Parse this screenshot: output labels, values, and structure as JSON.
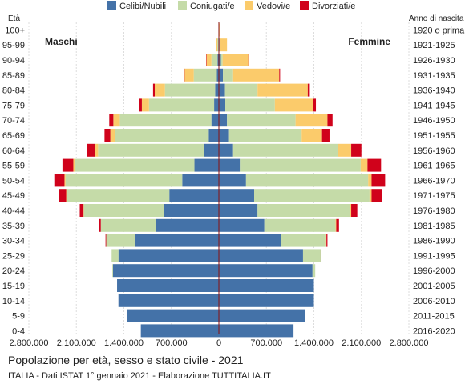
{
  "chart_data": {
    "type": "bar",
    "orientation": "horizontal-population-pyramid",
    "title": "Popolazione per età, sesso e stato civile - 2021",
    "subtitle": "ITALIA - Dati ISTAT 1° gennaio 2021 - Elaborazione TUTTITALIA.IT",
    "left_axis_title": "Età",
    "right_axis_title": "Anno di nascita",
    "left_side_label": "Maschi",
    "right_side_label": "Femmine",
    "legend_placement": "top-center",
    "grid": true,
    "xlim": [
      -2800000,
      2800000
    ],
    "x_ticks": [
      -2800000,
      -2100000,
      -1400000,
      -700000,
      0,
      700000,
      1400000,
      2100000,
      2800000
    ],
    "x_tick_labels": [
      "2.800.000",
      "2.100.000",
      "1.400.000",
      "700.000",
      "0",
      "700.000",
      "1.400.000",
      "2.100.000",
      "2.800.000"
    ],
    "age_groups": [
      "100+",
      "95-99",
      "90-94",
      "85-89",
      "80-84",
      "75-79",
      "70-74",
      "65-69",
      "60-64",
      "55-59",
      "50-54",
      "45-49",
      "40-44",
      "35-39",
      "30-34",
      "25-29",
      "20-24",
      "15-19",
      "10-14",
      "5-9",
      "0-4"
    ],
    "birth_years": [
      "1920 o prima",
      "1921-1925",
      "1926-1930",
      "1931-1935",
      "1936-1940",
      "1941-1945",
      "1946-1950",
      "1951-1955",
      "1956-1960",
      "1961-1965",
      "1966-1970",
      "1971-1975",
      "1976-1980",
      "1981-1985",
      "1986-1990",
      "1991-1995",
      "1996-2000",
      "2001-2005",
      "2006-2010",
      "2011-2015",
      "2016-2020"
    ],
    "series": [
      {
        "name": "Celibi/Nubili",
        "color": "#4472a8",
        "male": [
          3000,
          8000,
          20000,
          30000,
          55000,
          70000,
          110000,
          150000,
          220000,
          360000,
          540000,
          730000,
          810000,
          930000,
          1240000,
          1480000,
          1560000,
          1500000,
          1480000,
          1350000,
          1150000
        ],
        "female": [
          3000,
          10000,
          30000,
          60000,
          90000,
          95000,
          120000,
          150000,
          210000,
          310000,
          400000,
          520000,
          570000,
          670000,
          920000,
          1240000,
          1380000,
          1400000,
          1400000,
          1270000,
          1100000
        ]
      },
      {
        "name": "Coniugati/e",
        "color": "#c5dba8",
        "male": [
          1000,
          15000,
          90000,
          340000,
          740000,
          960000,
          1350000,
          1380000,
          1560000,
          1760000,
          1720000,
          1510000,
          1180000,
          810000,
          420000,
          100000,
          10000,
          0,
          0,
          0,
          0
        ],
        "female": [
          500,
          10000,
          25000,
          150000,
          480000,
          730000,
          1010000,
          1070000,
          1540000,
          1780000,
          1800000,
          1700000,
          1360000,
          1050000,
          660000,
          260000,
          40000,
          0,
          0,
          0,
          0
        ]
      },
      {
        "name": "Vedovi/e",
        "color": "#fbcb6b",
        "male": [
          2000,
          20000,
          75000,
          135000,
          150000,
          105000,
          95000,
          70000,
          50000,
          25000,
          15000,
          10000,
          5000,
          0,
          0,
          0,
          0,
          0,
          0,
          0,
          0
        ],
        "female": [
          5000,
          100000,
          380000,
          680000,
          740000,
          560000,
          470000,
          300000,
          200000,
          100000,
          50000,
          30000,
          20000,
          10000,
          5000,
          0,
          0,
          0,
          0,
          0,
          0
        ]
      },
      {
        "name": "Divorziati/e",
        "color": "#d0021b",
        "male": [
          0,
          0,
          2000,
          10000,
          25000,
          35000,
          60000,
          85000,
          115000,
          160000,
          150000,
          110000,
          55000,
          30000,
          10000,
          0,
          0,
          0,
          0,
          0,
          0
        ],
        "female": [
          0,
          0,
          3000,
          12000,
          30000,
          45000,
          75000,
          110000,
          150000,
          200000,
          200000,
          150000,
          90000,
          40000,
          15000,
          5000,
          0,
          0,
          0,
          0,
          0
        ]
      }
    ]
  }
}
